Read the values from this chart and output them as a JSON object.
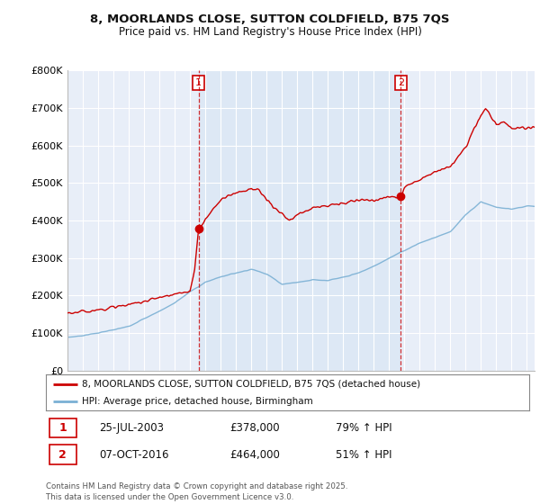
{
  "title_line1": "8, MOORLANDS CLOSE, SUTTON COLDFIELD, B75 7QS",
  "title_line2": "Price paid vs. HM Land Registry's House Price Index (HPI)",
  "xlim_start": 1995.0,
  "xlim_end": 2025.5,
  "ylim_min": 0,
  "ylim_max": 800000,
  "yticks": [
    0,
    100000,
    200000,
    300000,
    400000,
    500000,
    600000,
    700000,
    800000
  ],
  "ytick_labels": [
    "£0",
    "£100K",
    "£200K",
    "£300K",
    "£400K",
    "£500K",
    "£600K",
    "£700K",
    "£800K"
  ],
  "sale1_x": 2003.56,
  "sale1_y": 378000,
  "sale2_x": 2016.77,
  "sale2_y": 464000,
  "sale1_label": "25-JUL-2003",
  "sale1_price": "£378,000",
  "sale1_hpi": "79% ↑ HPI",
  "sale2_label": "07-OCT-2016",
  "sale2_price": "£464,000",
  "sale2_hpi": "51% ↑ HPI",
  "line1_color": "#cc0000",
  "line2_color": "#7ab0d4",
  "shade_color": "#dde8f5",
  "background_color": "#e8eef8",
  "grid_color": "#ffffff",
  "legend1_text": "8, MOORLANDS CLOSE, SUTTON COLDFIELD, B75 7QS (detached house)",
  "legend2_text": "HPI: Average price, detached house, Birmingham",
  "footnote": "Contains HM Land Registry data © Crown copyright and database right 2025.\nThis data is licensed under the Open Government Licence v3.0.",
  "hpi_anchors_x": [
    1995,
    1996,
    1997,
    1998,
    1999,
    2000,
    2001,
    2002,
    2003,
    2004,
    2005,
    2006,
    2007,
    2008,
    2009,
    2010,
    2011,
    2012,
    2013,
    2014,
    2015,
    2016,
    2017,
    2018,
    2019,
    2020,
    2021,
    2022,
    2023,
    2024,
    2025
  ],
  "hpi_anchors_y": [
    88000,
    93000,
    100000,
    108000,
    118000,
    138000,
    158000,
    180000,
    210000,
    235000,
    250000,
    260000,
    270000,
    258000,
    230000,
    235000,
    242000,
    240000,
    248000,
    260000,
    278000,
    300000,
    320000,
    340000,
    355000,
    370000,
    415000,
    450000,
    435000,
    430000,
    438000
  ],
  "prop_anchors_x": [
    1995,
    1997,
    1999,
    2001,
    2003.0,
    2003.3,
    2003.56,
    2004.5,
    2005,
    2006,
    2007,
    2007.5,
    2008,
    2009.0,
    2009.5,
    2010,
    2011,
    2012,
    2013,
    2014,
    2015,
    2016.0,
    2016.77,
    2017,
    2018,
    2019,
    2020,
    2021,
    2021.5,
    2022,
    2022.3,
    2022.5,
    2023,
    2023.5,
    2024,
    2025
  ],
  "prop_anchors_y": [
    152000,
    162000,
    175000,
    195000,
    210000,
    270000,
    378000,
    430000,
    455000,
    475000,
    485000,
    480000,
    455000,
    415000,
    400000,
    415000,
    435000,
    440000,
    445000,
    455000,
    455000,
    462000,
    464000,
    490000,
    510000,
    530000,
    545000,
    595000,
    640000,
    680000,
    700000,
    690000,
    655000,
    665000,
    645000,
    648000
  ]
}
